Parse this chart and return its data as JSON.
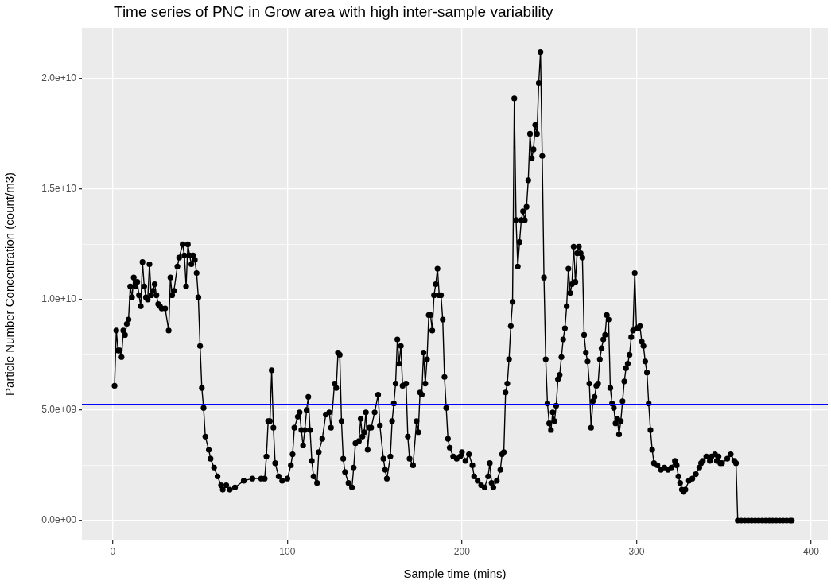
{
  "chart_data": {
    "type": "line",
    "title": "Time series of PNC in Grow area with high inter-sample variability",
    "xlabel": "Sample time (mins)",
    "ylabel": "Particle Number Concentration (count/m3)",
    "xlim": [
      -17.7,
      409.6
    ],
    "xticks": [
      0,
      {
        "value": 50,
        "label": null
      },
      100,
      {
        "value": 150,
        "label": null
      },
      200,
      {
        "value": 250,
        "label": null
      },
      300,
      {
        "value": 350,
        "label": null
      },
      400
    ],
    "ylim": [
      -900000000.0,
      22300000000.0
    ],
    "yticks": [
      {
        "value": 0,
        "label": "0.0e+00"
      },
      {
        "value": 2500000000.0,
        "label": null
      },
      {
        "value": 5000000000.0,
        "label": "5.0e+09"
      },
      {
        "value": 7500000000.0,
        "label": null
      },
      {
        "value": 10000000000.0,
        "label": "1.0e+10"
      },
      {
        "value": 12500000000.0,
        "label": null
      },
      {
        "value": 15000000000.0,
        "label": "1.5e+10"
      },
      {
        "value": 17500000000.0,
        "label": null
      },
      {
        "value": 20000000000.0,
        "label": "2.0e+10"
      }
    ],
    "grid": true,
    "marker": "circle",
    "line_style": "solid",
    "x": [
      1,
      2,
      3,
      4,
      5,
      6,
      7,
      8,
      9,
      10,
      11,
      12,
      13,
      14,
      15,
      16,
      17,
      18,
      19,
      20,
      21,
      22,
      23,
      24,
      25,
      26,
      27,
      28,
      30,
      32,
      33,
      34,
      35,
      37,
      38,
      40,
      41,
      42,
      43,
      44,
      45,
      46,
      47,
      48,
      49,
      50,
      51,
      52,
      53,
      55,
      56,
      58,
      60,
      62,
      63,
      65,
      67,
      70,
      75,
      80,
      85,
      87,
      88,
      89,
      90,
      91,
      92,
      93,
      95,
      97,
      100,
      102,
      103,
      104,
      106,
      107,
      108,
      109,
      110,
      111,
      112,
      113,
      114,
      115,
      117,
      118,
      120,
      122,
      124,
      125,
      127,
      128,
      129,
      130,
      131,
      132,
      133,
      135,
      137,
      138,
      139,
      141,
      142,
      143,
      144,
      145,
      146,
      147,
      148,
      150,
      152,
      153,
      155,
      156,
      157,
      159,
      160,
      161,
      162,
      163,
      164,
      165,
      166,
      168,
      169,
      170,
      172,
      174,
      175,
      176,
      177,
      178,
      179,
      180,
      181,
      182,
      183,
      184,
      185,
      186,
      187,
      188,
      189,
      190,
      191,
      192,
      193,
      195,
      197,
      199,
      200,
      202,
      204,
      206,
      207,
      209,
      211,
      213,
      215,
      216,
      217,
      218,
      220,
      222,
      223,
      224,
      225,
      226,
      227,
      228,
      229,
      230,
      231,
      232,
      233,
      234,
      235,
      236,
      237,
      238,
      239,
      240,
      241,
      242,
      243,
      244,
      245,
      246,
      247,
      248,
      249,
      250,
      251,
      252,
      253,
      254,
      255,
      256,
      257,
      258,
      259,
      260,
      261,
      262,
      263,
      264,
      265,
      266,
      267,
      268,
      269,
      270,
      271,
      272,
      273,
      274,
      275,
      276,
      277,
      278,
      279,
      280,
      281,
      282,
      283,
      284,
      285,
      286,
      287,
      288,
      289,
      290,
      291,
      292,
      293,
      294,
      295,
      296,
      297,
      298,
      299,
      300,
      301,
      302,
      303,
      304,
      305,
      306,
      307,
      308,
      309,
      310,
      312,
      314,
      316,
      318,
      320,
      322,
      323,
      324,
      325,
      326,
      327,
      328,
      330,
      332,
      334,
      336,
      337,
      338,
      340,
      342,
      343,
      345,
      346,
      347,
      348,
      349,
      352,
      354,
      356,
      357,
      358,
      360,
      362,
      364,
      366,
      368,
      370,
      372,
      374,
      376,
      378,
      380,
      382,
      384,
      386,
      388,
      389
    ],
    "values": [
      6100000000.0,
      8600000000.0,
      7700000000.0,
      7700000000.0,
      7400000000.0,
      8600000000.0,
      8400000000.0,
      8900000000.0,
      9100000000.0,
      10600000000.0,
      10100000000.0,
      11000000000.0,
      10600000000.0,
      10800000000.0,
      10200000000.0,
      9700000000.0,
      11700000000.0,
      10600000000.0,
      10100000000.0,
      10000000000.0,
      11600000000.0,
      10200000000.0,
      10400000000.0,
      10700000000.0,
      10200000000.0,
      9800000000.0,
      9700000000.0,
      9600000000.0,
      9600000000.0,
      8600000000.0,
      11000000000.0,
      10200000000.0,
      10400000000.0,
      11500000000.0,
      11900000000.0,
      12500000000.0,
      12000000000.0,
      10600000000.0,
      12500000000.0,
      12000000000.0,
      11600000000.0,
      12000000000.0,
      11800000000.0,
      11200000000.0,
      10100000000.0,
      7900000000.0,
      6000000000.0,
      5100000000.0,
      3800000000.0,
      3200000000.0,
      2800000000.0,
      2400000000.0,
      2000000000.0,
      1600000000.0,
      1400000000.0,
      1600000000.0,
      1400000000.0,
      1500000000.0,
      1800000000.0,
      1900000000.0,
      1900000000.0,
      1900000000.0,
      2900000000.0,
      4500000000.0,
      4500000000.0,
      6800000000.0,
      4200000000.0,
      2600000000.0,
      2000000000.0,
      1800000000.0,
      1900000000.0,
      2500000000.0,
      3000000000.0,
      4200000000.0,
      4700000000.0,
      4900000000.0,
      4100000000.0,
      3400000000.0,
      4100000000.0,
      5000000000.0,
      5600000000.0,
      4100000000.0,
      2700000000.0,
      2000000000.0,
      1700000000.0,
      3100000000.0,
      3700000000.0,
      4800000000.0,
      4900000000.0,
      4200000000.0,
      6200000000.0,
      6000000000.0,
      7600000000.0,
      7500000000.0,
      4500000000.0,
      2800000000.0,
      2200000000.0,
      1700000000.0,
      1500000000.0,
      2400000000.0,
      3500000000.0,
      3600000000.0,
      4600000000.0,
      3800000000.0,
      4000000000.0,
      4900000000.0,
      3200000000.0,
      4200000000.0,
      4200000000.0,
      4900000000.0,
      5700000000.0,
      4300000000.0,
      2800000000.0,
      2300000000.0,
      1900000000.0,
      2900000000.0,
      4500000000.0,
      5300000000.0,
      6200000000.0,
      8200000000.0,
      7100000000.0,
      7900000000.0,
      6100000000.0,
      6200000000.0,
      3800000000.0,
      2800000000.0,
      2500000000.0,
      4500000000.0,
      4000000000.0,
      5800000000.0,
      5700000000.0,
      7600000000.0,
      6200000000.0,
      7300000000.0,
      9300000000.0,
      9300000000.0,
      8600000000.0,
      10200000000.0,
      10700000000.0,
      11400000000.0,
      10200000000.0,
      10200000000.0,
      9100000000.0,
      6500000000.0,
      5100000000.0,
      3700000000.0,
      3300000000.0,
      2900000000.0,
      2800000000.0,
      2900000000.0,
      3100000000.0,
      2700000000.0,
      3000000000.0,
      2500000000.0,
      2000000000.0,
      1800000000.0,
      1600000000.0,
      1500000000.0,
      2000000000.0,
      2600000000.0,
      1700000000.0,
      1500000000.0,
      1800000000.0,
      2300000000.0,
      3000000000.0,
      3100000000.0,
      5800000000.0,
      6200000000.0,
      7300000000.0,
      8800000000.0,
      9900000000.0,
      19100000000.0,
      13600000000.0,
      11500000000.0,
      12600000000.0,
      13600000000.0,
      14000000000.0,
      13600000000.0,
      14200000000.0,
      15400000000.0,
      17500000000.0,
      16400000000.0,
      16800000000.0,
      17900000000.0,
      17500000000.0,
      19800000000.0,
      21200000000.0,
      16500000000.0,
      11000000000.0,
      7300000000.0,
      5300000000.0,
      4400000000.0,
      4100000000.0,
      4900000000.0,
      4500000000.0,
      5200000000.0,
      6400000000.0,
      6600000000.0,
      7400000000.0,
      8200000000.0,
      8700000000.0,
      9700000000.0,
      11400000000.0,
      10300000000.0,
      10700000000.0,
      12400000000.0,
      10800000000.0,
      12100000000.0,
      12400000000.0,
      12100000000.0,
      11900000000.0,
      8400000000.0,
      7600000000.0,
      7200000000.0,
      6200000000.0,
      4200000000.0,
      5400000000.0,
      5600000000.0,
      6100000000.0,
      6200000000.0,
      7300000000.0,
      7800000000.0,
      8200000000.0,
      8400000000.0,
      9300000000.0,
      9100000000.0,
      6000000000.0,
      5300000000.0,
      5100000000.0,
      4400000000.0,
      4600000000.0,
      3900000000.0,
      4500000000.0,
      5400000000.0,
      6300000000.0,
      6900000000.0,
      7100000000.0,
      7500000000.0,
      8300000000.0,
      8600000000.0,
      11200000000.0,
      8700000000.0,
      8700000000.0,
      8800000000.0,
      8100000000.0,
      7900000000.0,
      7200000000.0,
      6700000000.0,
      5300000000.0,
      4100000000.0,
      3200000000.0,
      2600000000.0,
      2500000000.0,
      2300000000.0,
      2400000000.0,
      2300000000.0,
      2400000000.0,
      2700000000.0,
      2500000000.0,
      2000000000.0,
      1700000000.0,
      1400000000.0,
      1300000000.0,
      1400000000.0,
      1800000000.0,
      1900000000.0,
      2100000000.0,
      2400000000.0,
      2600000000.0,
      2700000000.0,
      2900000000.0,
      2700000000.0,
      2900000000.0,
      3000000000.0,
      2700000000.0,
      2900000000.0,
      2600000000.0,
      2600000000.0,
      2800000000.0,
      3000000000.0,
      2700000000.0,
      2600000000.0,
      0,
      0,
      0,
      0,
      0,
      0,
      0,
      0,
      0,
      0,
      0,
      0,
      0,
      0,
      0,
      0,
      0
    ],
    "color": "#000000",
    "ref_lines": [
      {
        "axis": "y",
        "value": 5260000000.0,
        "color": "#0000ff",
        "line_style": "solid"
      }
    ]
  }
}
